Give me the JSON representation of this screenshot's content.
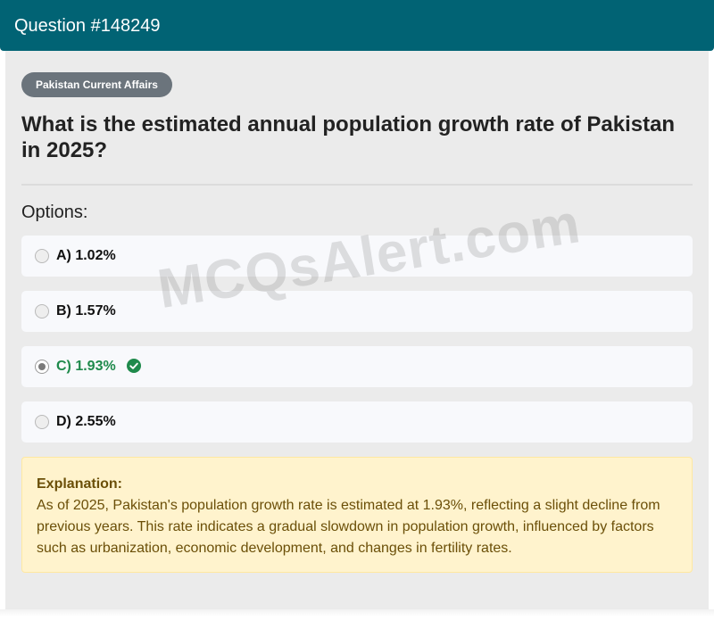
{
  "header": {
    "title": "Question #148249"
  },
  "badge": "Pakistan Current Affairs",
  "question": "What is the estimated annual population growth rate of Pakistan in 2025?",
  "options_heading": "Options:",
  "options": [
    {
      "label": "A) 1.02%",
      "selected": false,
      "correct": false
    },
    {
      "label": "B) 1.57%",
      "selected": false,
      "correct": false
    },
    {
      "label": "C) 1.93%",
      "selected": true,
      "correct": true
    },
    {
      "label": "D) 2.55%",
      "selected": false,
      "correct": false
    }
  ],
  "explanation": {
    "title": "Explanation:",
    "text": "As of 2025, Pakistan's population growth rate is estimated at 1.93%, reflecting a slight decline from previous years. This rate indicates a gradual slowdown in population growth, influenced by factors such as urbanization, economic development, and changes in fertility rates."
  },
  "watermark": "MCQsAlert.com",
  "icons": {
    "correct": "check-circle-icon"
  },
  "colors": {
    "header_bg": "#016374",
    "badge_bg": "#6b747c",
    "correct": "#1f8a4c",
    "explanation_bg": "#fff3cd",
    "explanation_text": "#6b4f08"
  }
}
